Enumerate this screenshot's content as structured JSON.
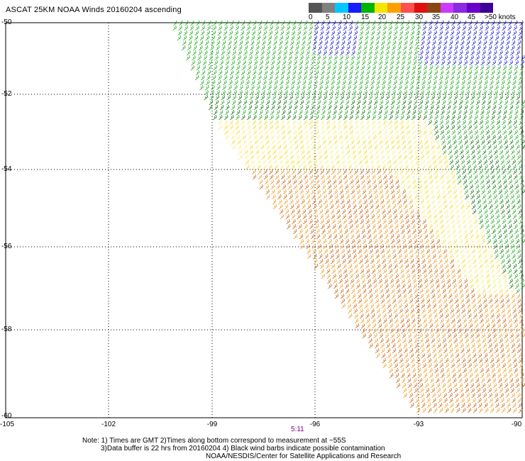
{
  "title": "ASCAT 25KM NOAA Winds 20160204 ascending",
  "legend": {
    "colors": [
      "#555555",
      "#808080",
      "#00c8ff",
      "#1a1aff",
      "#00b400",
      "#f5e600",
      "#ffa000",
      "#ff5050",
      "#e01010",
      "#8b4513",
      "#c83cff",
      "#8a2be2",
      "#6a00c8",
      "#3c0096"
    ],
    "labels": [
      "0",
      "5",
      "10",
      "15",
      "20",
      "25",
      "30",
      "35",
      "40",
      "45",
      ">50 knots"
    ]
  },
  "axes": {
    "lat_labels": [
      "-50",
      "-52",
      "-54",
      "-56",
      "-58",
      "-60"
    ],
    "lon_labels": [
      "-105",
      "-102",
      "-99",
      "-96",
      "-93",
      "-90"
    ]
  },
  "time_label": "5:11",
  "notes": [
    "Note: 1) Times are GMT 2)Times along bottom correspond to measurement at ~55S",
    "3)Data buffer is 22 hrs from 20160204 4) Black wind barbs indicate possible contamination",
    "NOAA/NESDIS/Center for Satellite Applications and Research"
  ],
  "swath_colors": {
    "green": "#1ea81e",
    "dark_green": "#0f6e0f",
    "blue": "#1a1acc",
    "yellow": "#f2dc2c",
    "light_yellow": "#f6ee80",
    "orange": "#ee9a20",
    "brown": "#c86414"
  }
}
